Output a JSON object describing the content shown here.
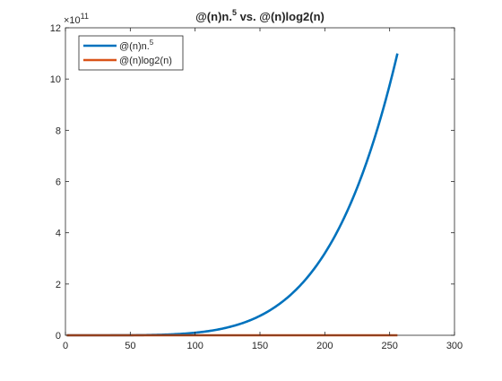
{
  "chart_data": {
    "type": "line",
    "title": {
      "main": "@(n)n.",
      "main_sup": "5",
      "rest": " vs. @(n)log2(n)"
    },
    "xlabel": "",
    "ylabel": "",
    "xlim": [
      0,
      300
    ],
    "ylim": [
      0,
      12
    ],
    "y_multiplier": {
      "base": "×10",
      "exp": "11"
    },
    "x_ticks": [
      0,
      50,
      100,
      150,
      200,
      250,
      300
    ],
    "y_ticks": [
      0,
      2,
      4,
      6,
      8,
      10,
      12
    ],
    "grid": false,
    "legend_position": "top-left",
    "series": [
      {
        "name": "@(n)n.",
        "name_sup": "5",
        "color": "#0072BD",
        "function": "n^5",
        "x_range": [
          1,
          256
        ],
        "points": [
          [
            1,
            0
          ],
          [
            50,
            0.0031
          ],
          [
            100,
            0.1
          ],
          [
            150,
            0.759
          ],
          [
            200,
            3.2
          ],
          [
            256,
            10.995
          ]
        ]
      },
      {
        "name": "@(n)log2(n)",
        "name_sup": "",
        "color": "#D95319",
        "function": "log2(n)",
        "x_range": [
          1,
          256
        ],
        "points": [
          [
            1,
            0
          ],
          [
            256,
            0
          ]
        ]
      }
    ]
  }
}
